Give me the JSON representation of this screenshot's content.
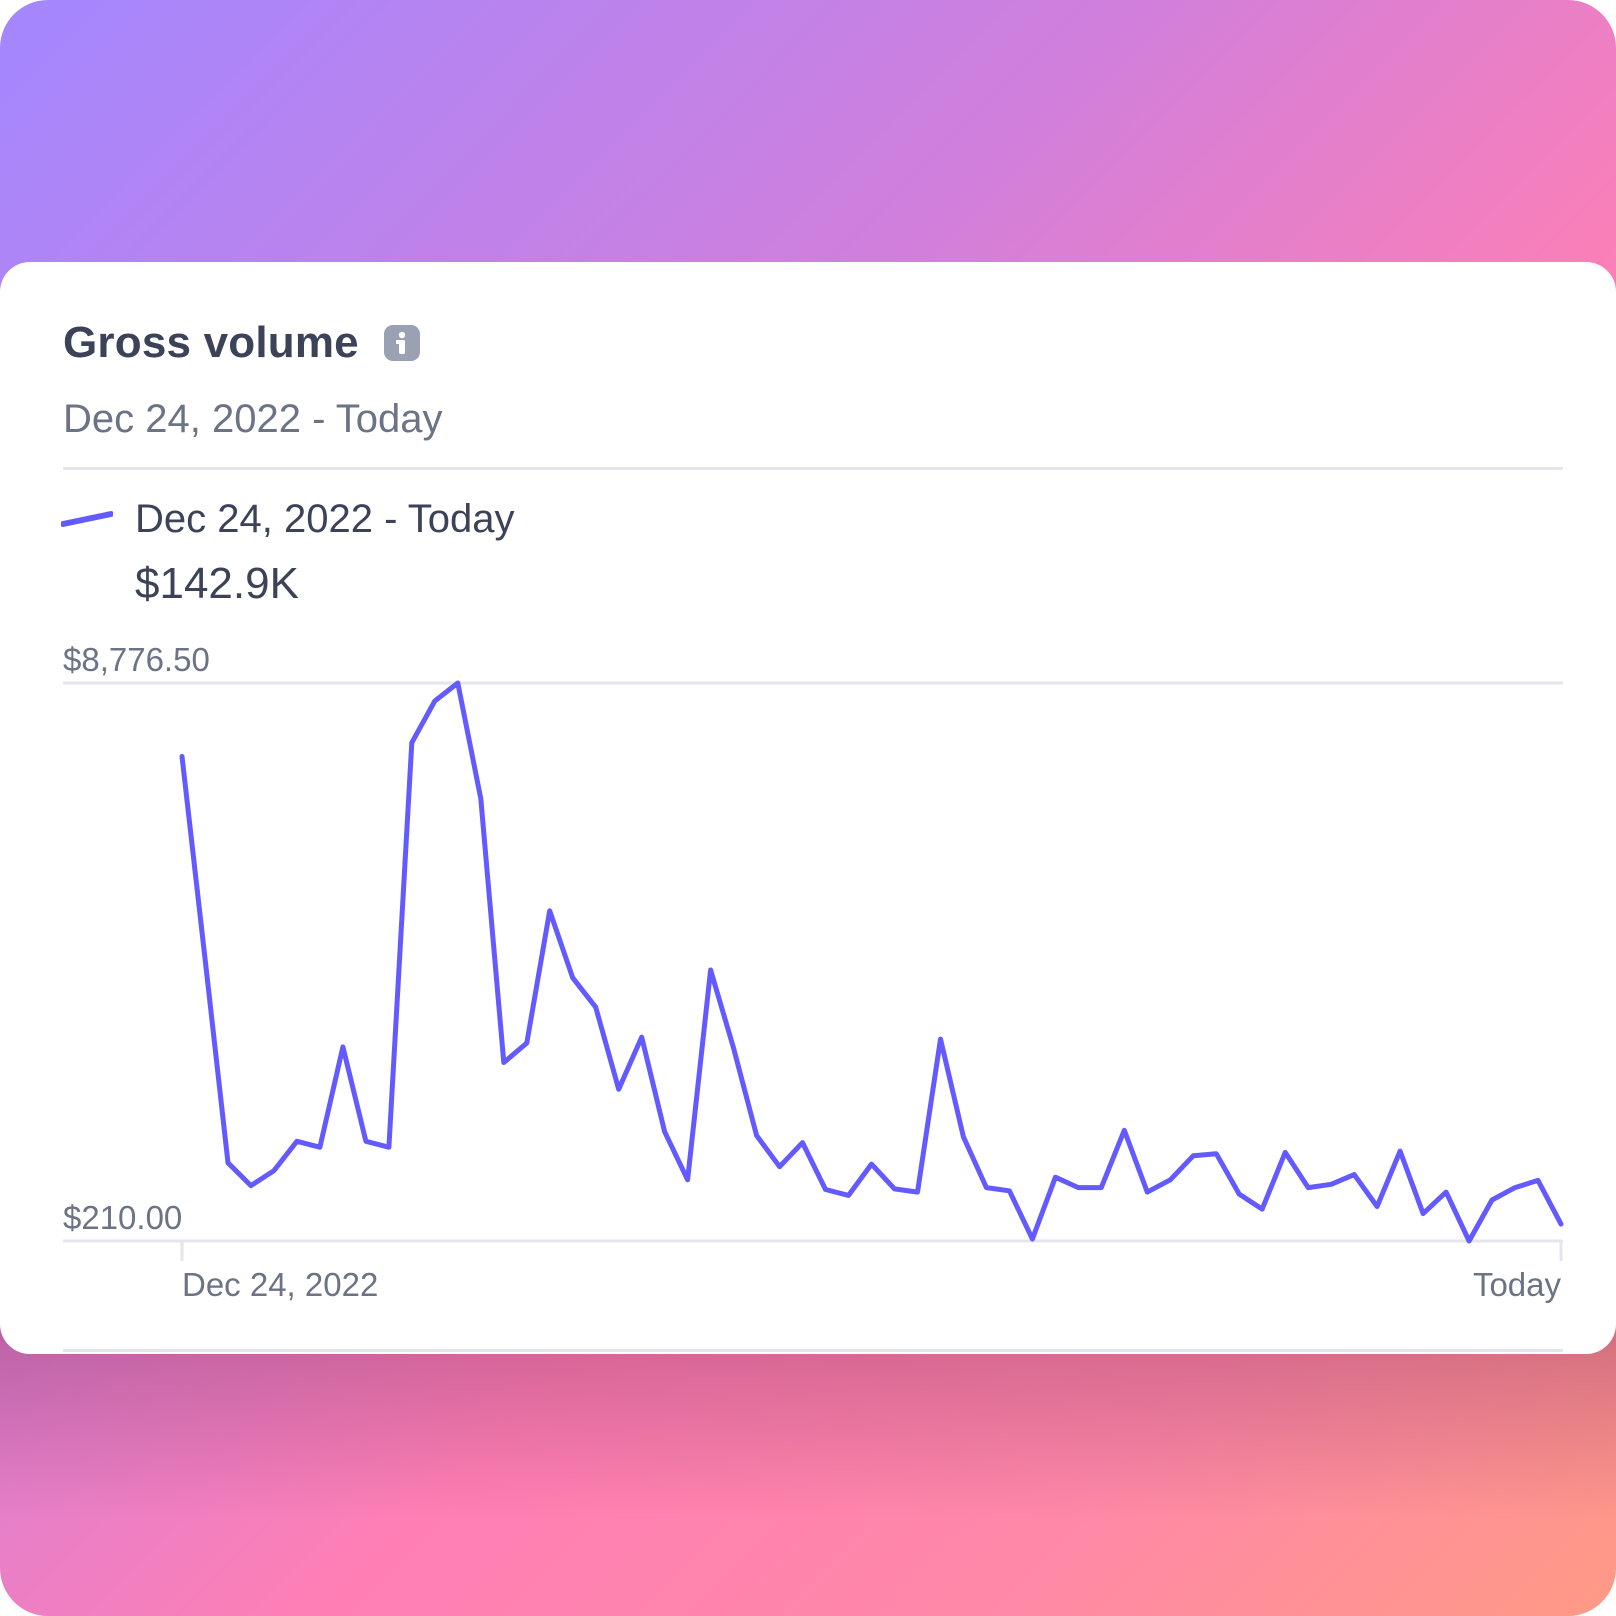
{
  "colors": {
    "accent": "#635bff",
    "grid": "#e3e6ee",
    "text_primary": "#3c4257",
    "text_secondary": "#6b7385"
  },
  "card": {
    "title": "Gross volume",
    "info_icon": "info-icon",
    "date_range": "Dec 24, 2022 - Today",
    "legend_label": "Dec 24, 2022 - Today",
    "legend_value": "$142.9K"
  },
  "chart_data": {
    "type": "line",
    "title": "",
    "xlabel": "",
    "ylabel": "",
    "grid": true,
    "y_tick_labels": [
      "$8,776.50",
      "$210.00"
    ],
    "x_tick_labels": [
      "Dec 24, 2022",
      "Today"
    ],
    "ylim": [
      210,
      8776.5
    ],
    "series": [
      {
        "values": [
          7650,
          4550,
          1410,
          1060,
          1290,
          1740,
          1650,
          3190,
          1740,
          1650,
          7860,
          8500,
          8776.5,
          7000,
          2950,
          3250,
          5280,
          4250,
          3800,
          2540,
          3340,
          1890,
          1150,
          4370,
          3170,
          1830,
          1350,
          1720,
          1000,
          910,
          1390,
          1010,
          960,
          3310,
          1810,
          1030,
          980,
          240,
          1190,
          1030,
          1030,
          1910,
          960,
          1150,
          1520,
          1550,
          930,
          700,
          1570,
          1030,
          1080,
          1230,
          740,
          1590,
          630,
          960,
          210,
          840,
          1030,
          1140,
          470
        ]
      }
    ]
  }
}
